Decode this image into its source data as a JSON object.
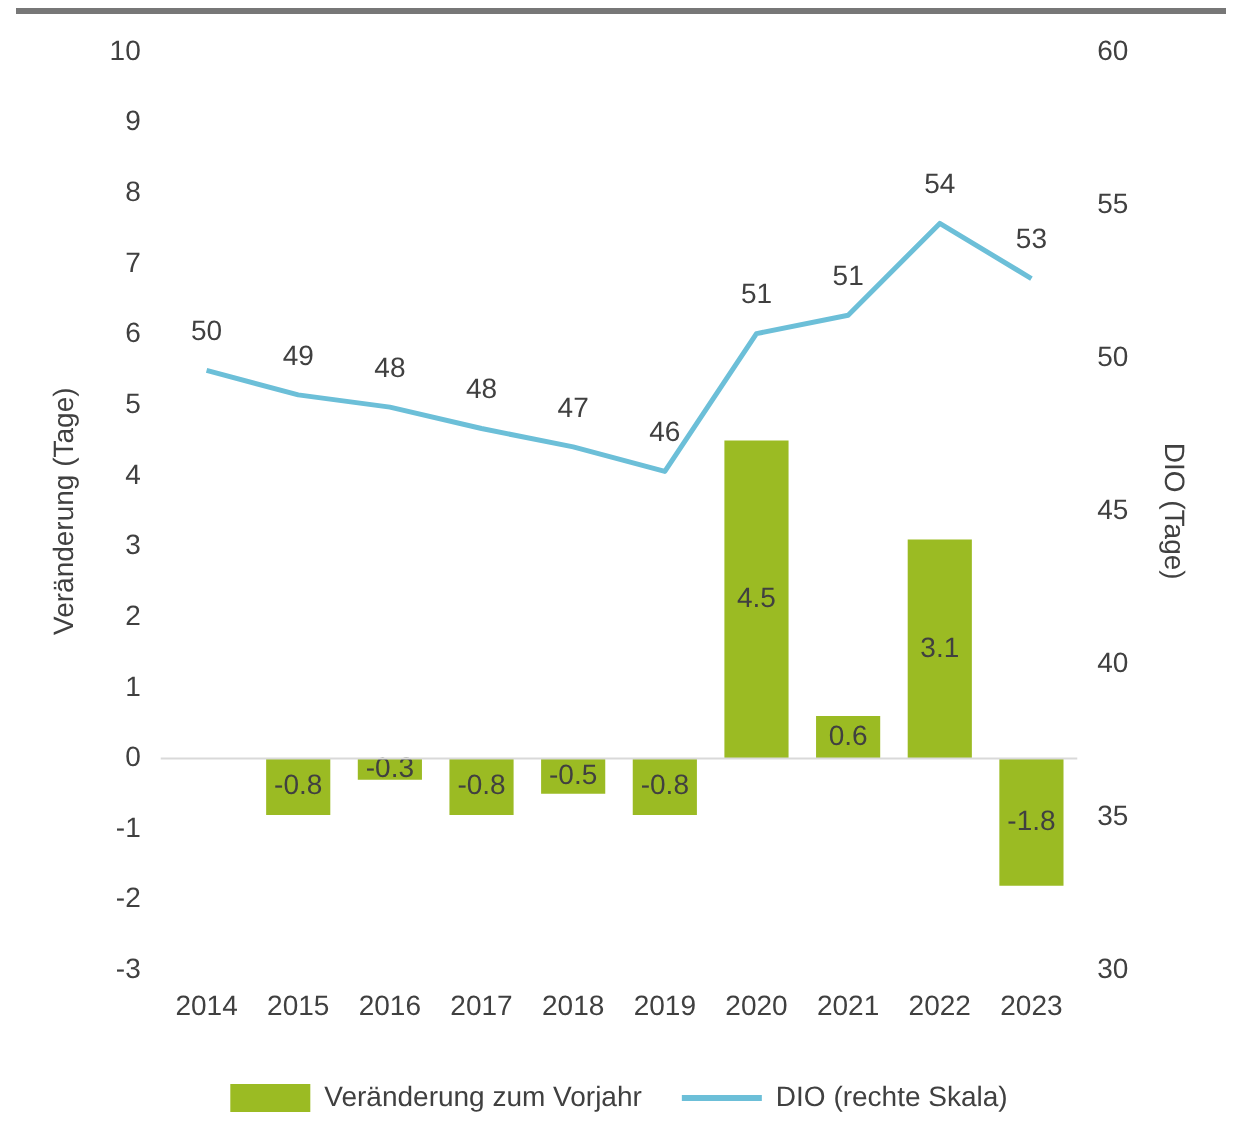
{
  "chart_data": {
    "type": "bar",
    "ylabel": "Veränderung (Tage)",
    "y2label": "DIO (Tage)",
    "categories": [
      "2014",
      "2015",
      "2016",
      "2017",
      "2018",
      "2019",
      "2020",
      "2021",
      "2022",
      "2023"
    ],
    "series": [
      {
        "name": "Veränderung zum Vorjahr",
        "color": "#9bbb23",
        "values": [
          null,
          -0.8,
          -0.3,
          -0.8,
          -0.5,
          -0.8,
          4.5,
          0.6,
          3.1,
          -1.8
        ],
        "data_labels": true
      },
      {
        "name": "DIO (rechte Skala)",
        "type": "line",
        "axis": "y2",
        "color": "#6cbfd8",
        "marker": "none",
        "values": [
          49.6,
          48.8,
          48.4,
          47.7,
          47.1,
          46.3,
          50.8,
          51.4,
          54.4,
          52.6
        ],
        "value_labels": [
          "50",
          "49",
          "48",
          "48",
          "47",
          "46",
          "51",
          "51",
          "54",
          "53"
        ]
      }
    ],
    "ylim": [
      -3,
      10
    ],
    "yticks": [
      -3,
      -2,
      -1,
      0,
      1,
      2,
      3,
      4,
      5,
      6,
      7,
      8,
      9,
      10
    ],
    "y2lim": [
      30,
      60
    ],
    "y2ticks": [
      30,
      35,
      40,
      45,
      50,
      55,
      60
    ],
    "ref_lines": [
      {
        "axis": "y",
        "value": 0,
        "color": "#d9d9d9"
      }
    ],
    "grid": false,
    "legend": "bottom"
  }
}
